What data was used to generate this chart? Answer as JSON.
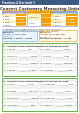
{
  "bg_color": "#ffffff",
  "top_bar_color": "#3d5a80",
  "top_bar_text": "Fractions & Decimals 3",
  "title": "Convert Customary Measuring Units",
  "title_color": "#333333",
  "orange_line": "#e8a000",
  "table_border_color": "#b0a0cc",
  "table1_header_color": "#b09ec0",
  "table2_header_color": "#e8a000",
  "table3_header_color": "#88aacc",
  "table_row_odd": "#fdf0c0",
  "table_row_even": "#ffffff",
  "val_box_color": "#f0a000",
  "green_border": "#6ab04c",
  "blue_box_bg": "#e8f4fc",
  "blue_box_border": "#88bbdd",
  "orange_box_bg": "#fef8e8",
  "orange_box_border": "#ddaa44",
  "practice_bg": "#f8fff8",
  "prob_box_bg": "#ffffff",
  "prob_box_border": "#cccccc",
  "footer_line": "#ddaa44",
  "text_color": "#333333",
  "light_text": "#888888"
}
